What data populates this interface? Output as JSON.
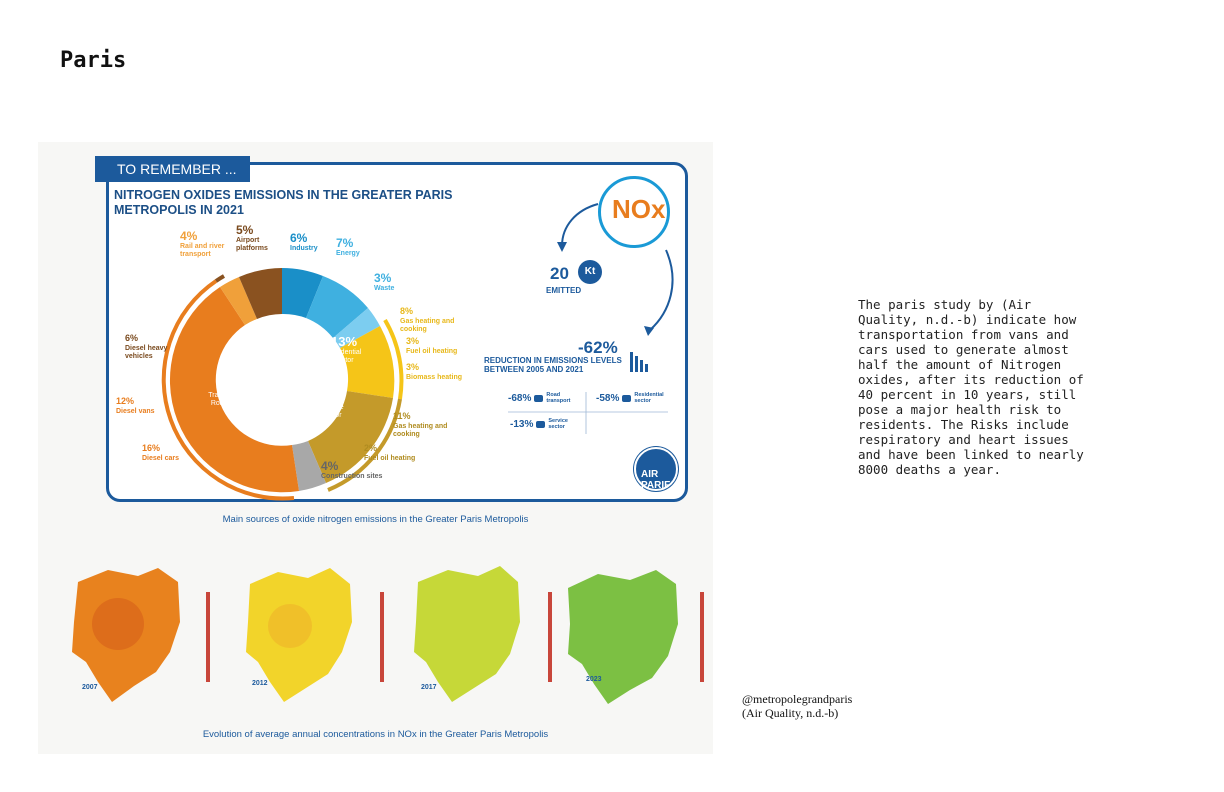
{
  "page": {
    "title": "Paris"
  },
  "infographic": {
    "tab": "TO REMEMBER ...",
    "title": "NITROGEN OXIDES EMISSIONS IN THE GREATER PARIS METROPOLIS IN 2021",
    "nox": "NOx",
    "emitted_value": "20",
    "emitted_unit": "Kt",
    "emitted_label": "EMITTED",
    "reduction_value": "-62%",
    "reduction_label": "REDUCTION IN EMISSIONS LEVELS BETWEEN 2005 AND 2021",
    "stats": [
      {
        "value": "-68%",
        "label": "Road transport"
      },
      {
        "value": "-58%",
        "label": "Residential sector"
      },
      {
        "value": "-13%",
        "label": "Service sector"
      }
    ],
    "brand": "AIR PARIF",
    "segments": [
      {
        "pct": "6%",
        "label": "Industry"
      },
      {
        "pct": "7%",
        "label": "Energy"
      },
      {
        "pct": "3%",
        "label": "Waste"
      },
      {
        "pct": "8%",
        "label": "Gas heating and cooking"
      },
      {
        "pct": "3%",
        "label": "Fuel oil heating"
      },
      {
        "pct": "3%",
        "label": "Biomass heating"
      },
      {
        "pct": "11%",
        "label": "Gas heating and cooking"
      },
      {
        "pct": "2%",
        "label": "Fuel oil heating"
      },
      {
        "pct": "4%",
        "label": "Construction sites"
      },
      {
        "pct": "16%",
        "label": "Diesel cars"
      },
      {
        "pct": "12%",
        "label": "Diesel vans"
      },
      {
        "pct": "6%",
        "label": "Diesel heavy vehicles"
      },
      {
        "pct": "4%",
        "label": "Rail and river transport"
      },
      {
        "pct": "5%",
        "label": "Airport platforms"
      }
    ],
    "groups": {
      "residential": {
        "pct": "13%",
        "label": "Residential sector"
      },
      "service": {
        "pct": "14%",
        "label": "Service sector"
      },
      "road": {
        "pct": "43%",
        "label": "Transport routier Road transport"
      }
    }
  },
  "captions": {
    "donut": "Main sources of oxide nitrogen emissions in the Greater Paris Metropolis",
    "maps": "Evolution of average annual concentrations in NOx in the Greater Paris Metropolis"
  },
  "maps": {
    "years": [
      "2007",
      "2012",
      "2017",
      "2023"
    ],
    "colors": [
      "#e8821e",
      "#f2d42a",
      "#c6d838",
      "#7cc043"
    ]
  },
  "body_text": "The paris study by (Air Quality, n.d.-b) indicate how transportation from vans and cars used to generate almost half the amount of Nitrogen oxides, after its reduction of 40 percent in 10 years, still pose a major health risk to residents. The Risks include respiratory and heart issues and have been linked to nearly 8000 deaths a year.",
  "credit": {
    "handle": "@metropolegrandparis",
    "source": "(Air Quality, n.d.-b)"
  }
}
